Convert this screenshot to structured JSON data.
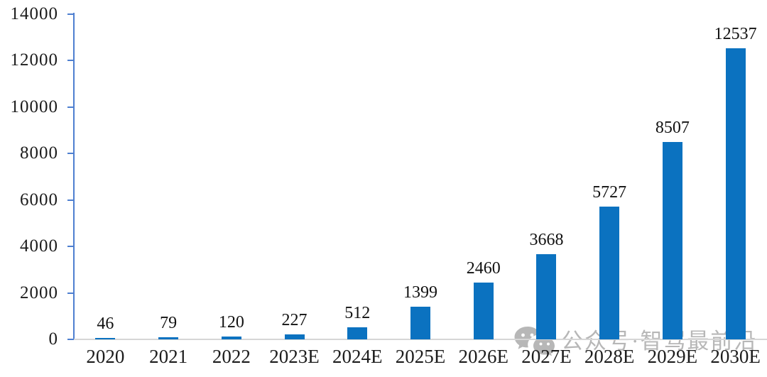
{
  "chart_data": {
    "type": "bar",
    "title": "",
    "xlabel": "",
    "ylabel": "",
    "categories": [
      "2020",
      "2021",
      "2022",
      "2023E",
      "2024E",
      "2025E",
      "2026E",
      "2027E",
      "2028E",
      "2029E",
      "2030E"
    ],
    "values": [
      46,
      79,
      120,
      227,
      512,
      1399,
      2460,
      3668,
      5727,
      8507,
      12537
    ],
    "ylim": [
      0,
      14000
    ],
    "ytick_step": 2000,
    "ytick_labels": [
      "0",
      "2000",
      "4000",
      "6000",
      "8000",
      "10000",
      "12000",
      "14000"
    ],
    "grid": false,
    "legend_position": "none",
    "data_labels_shown": true,
    "colors": {
      "bar": "#0b72c0",
      "axis_line": "#4e7fd0",
      "baseline": "#d6d6d6",
      "label_text": "#1c1c1c"
    }
  },
  "watermark": {
    "icon": "wechat-icon",
    "text": "公众号·智驾最前沿",
    "color": "#ababab"
  }
}
